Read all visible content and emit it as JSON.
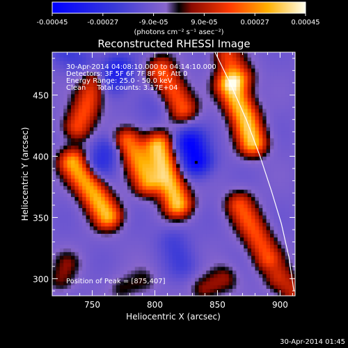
{
  "chart_data": {
    "type": "heatmap",
    "title": "Reconstructed RHESSI Image",
    "xlabel": "Heliocentric X (arcsec)",
    "ylabel": "Heliocentric Y (arcsec)",
    "xlim": [
      718,
      912
    ],
    "ylim": [
      286,
      485
    ],
    "x_ticks": [
      750,
      800,
      850,
      900
    ],
    "y_ticks": [
      300,
      350,
      400,
      450
    ],
    "colorbar": {
      "min": -0.00045,
      "max": 0.00045,
      "ticks": [
        -0.00045,
        -0.00027,
        -9e-05,
        9e-05,
        0.00027,
        0.00045
      ],
      "tick_labels": [
        "-0.00045",
        "-0.00027",
        "-9.0e-05",
        "9.0e-05",
        "0.00027",
        "0.00045"
      ],
      "unit_label": "(photons cm⁻² s⁻¹ asec⁻²)"
    },
    "info": [
      "30-Apr-2014 04:08:10.000 to 04:14:10.000",
      "Detectors: 3F 5F 6F 7F 8F 9F, Att 0",
      "Energy Range: 25.0 - 50.0 keV",
      "Clean     Total counts: 3.17E+04"
    ],
    "peak_label": "Position of Peak = [875,407]",
    "peak": [
      875,
      407
    ],
    "marker": [
      833,
      395
    ],
    "limb": [
      [
        848,
        485
      ],
      [
        860,
        460
      ],
      [
        873,
        430
      ],
      [
        884,
        400
      ],
      [
        893,
        372
      ],
      [
        901,
        345
      ],
      [
        907,
        318
      ],
      [
        911,
        290
      ]
    ],
    "sources": [
      {
        "x": [
          735,
          748,
          762
        ],
        "y": [
          395,
          375,
          352
        ],
        "v": 0.00042
      },
      {
        "x": [
          752,
          745,
          738
        ],
        "y": [
          460,
          440,
          425
        ],
        "v": 0.00028
      },
      {
        "x": [
          778,
          786,
          794
        ],
        "y": [
          412,
          398,
          380
        ],
        "v": 0.00036
      },
      {
        "x": [
          803,
          810,
          818
        ],
        "y": [
          408,
          385,
          362
        ],
        "v": 0.00045
      },
      {
        "x": [
          805,
          814,
          822
        ],
        "y": [
          470,
          455,
          440
        ],
        "v": 0.0003
      },
      {
        "x": [
          860,
          872,
          878
        ],
        "y": [
          458,
          432,
          412
        ],
        "v": 0.00045
      },
      {
        "x": [
          858,
          862,
          868
        ],
        "y": [
          482,
          474,
          465
        ],
        "v": 0.00025
      },
      {
        "x": [
          868,
          880,
          890
        ],
        "y": [
          360,
          338,
          318
        ],
        "v": 0.00028
      },
      {
        "x": [
          900,
          908,
          910
        ],
        "y": [
          300,
          293,
          288
        ],
        "v": 0.0002
      },
      {
        "x": [
          840,
          855
        ],
        "y": [
          292,
          300
        ],
        "v": 0.00015
      },
      {
        "x": [
          725,
          730
        ],
        "y": [
          300,
          312
        ],
        "v": 0.00012
      },
      {
        "x": [
          775,
          790
        ],
        "y": [
          292,
          298
        ],
        "v": 0.0001
      }
    ],
    "wells": [
      {
        "x": [
          833,
          828
        ],
        "y": [
          397,
          410
        ],
        "v": -0.00045
      },
      {
        "x": [
          762,
          755
        ],
        "y": [
          405,
          395
        ],
        "v": -0.00028
      },
      {
        "x": [
          765,
          770
        ],
        "y": [
          465,
          470
        ],
        "v": -0.00035
      },
      {
        "x": [
          815,
          822
        ],
        "y": [
          330,
          312
        ],
        "v": -0.0002
      },
      {
        "x": [
          730,
          740
        ],
        "y": [
          485,
          478
        ],
        "v": -0.0002
      },
      {
        "x": [
          795,
          800
        ],
        "y": [
          445,
          440
        ],
        "v": -0.00015
      }
    ]
  },
  "footer": {
    "timestamp": "30-Apr-2014 01:45"
  }
}
